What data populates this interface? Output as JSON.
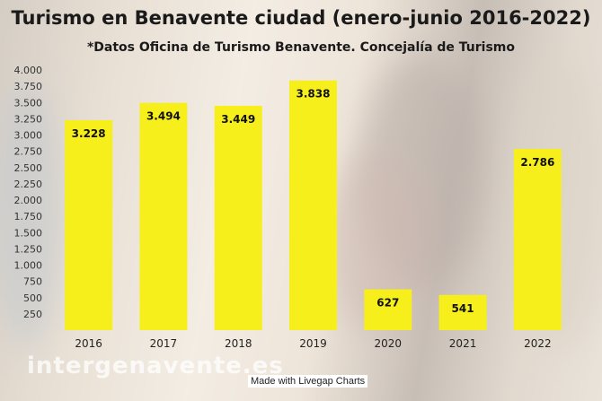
{
  "chart_data": {
    "type": "bar",
    "title": "Turismo en Benavente ciudad (enero-junio 2016-2022)",
    "subtitle": "*Datos Oficina de Turismo Benavente. Concejalía de Turismo",
    "categories": [
      "2016",
      "2017",
      "2018",
      "2019",
      "2020",
      "2021",
      "2022"
    ],
    "values": [
      3228,
      3494,
      3449,
      3838,
      627,
      541,
      2786
    ],
    "data_labels": [
      "3.228",
      "3.494",
      "3.449",
      "3.838",
      "627",
      "541",
      "2.786"
    ],
    "ylim": [
      0,
      4000
    ],
    "y_ticks": [
      250,
      500,
      750,
      1000,
      1250,
      1500,
      1750,
      2000,
      2250,
      2500,
      2750,
      3000,
      3250,
      3500,
      3750,
      4000
    ],
    "y_tick_labels": [
      "250",
      "500",
      "750",
      "1.000",
      "1.250",
      "1.500",
      "1.750",
      "2.000",
      "2.250",
      "2.500",
      "2.750",
      "3.000",
      "3.250",
      "3.500",
      "3.750",
      "4.000"
    ],
    "grid": false,
    "bar_color": "#f7ef1c"
  },
  "watermark": "intergenavente.es",
  "credit": "Made with Livegap Charts"
}
